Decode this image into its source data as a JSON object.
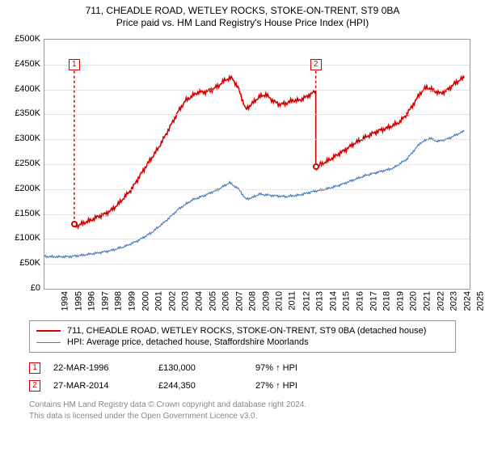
{
  "title_line1": "711, CHEADLE ROAD, WETLEY ROCKS, STOKE-ON-TRENT, ST9 0BA",
  "title_line2": "Price paid vs. HM Land Registry's House Price Index (HPI)",
  "chart": {
    "type": "line",
    "xlim": [
      1994,
      2025.7
    ],
    "ylim": [
      0,
      500000
    ],
    "ytick_step": 50000,
    "yticks": [
      "£0",
      "£50K",
      "£100K",
      "£150K",
      "£200K",
      "£250K",
      "£300K",
      "£350K",
      "£400K",
      "£450K",
      "£500K"
    ],
    "xticks": [
      1994,
      1995,
      1996,
      1997,
      1998,
      1999,
      2000,
      2001,
      2002,
      2003,
      2004,
      2005,
      2006,
      2007,
      2008,
      2009,
      2010,
      2011,
      2012,
      2013,
      2014,
      2015,
      2016,
      2017,
      2018,
      2019,
      2020,
      2021,
      2022,
      2023,
      2024,
      2025
    ],
    "grid_color": "#cccccc",
    "border_color": "#999999",
    "background_color": "#ffffff",
    "label_fontsize": 11,
    "series": [
      {
        "name": "property",
        "color": "#d40000",
        "width": 1.6,
        "segments": [
          [
            [
              1996.22,
              130000
            ],
            [
              1996.5,
              127000
            ],
            [
              1997,
              133000
            ],
            [
              1997.5,
              138000
            ],
            [
              1998,
              145000
            ],
            [
              1998.5,
              150000
            ],
            [
              1999,
              158000
            ],
            [
              1999.5,
              170000
            ],
            [
              2000,
              185000
            ],
            [
              2000.5,
              200000
            ],
            [
              2001,
              222000
            ],
            [
              2001.5,
              243000
            ],
            [
              2002,
              263000
            ],
            [
              2002.5,
              283000
            ],
            [
              2003,
              307000
            ],
            [
              2003.5,
              332000
            ],
            [
              2004,
              357000
            ],
            [
              2004.5,
              377000
            ],
            [
              2005,
              387000
            ],
            [
              2005.5,
              395000
            ],
            [
              2006,
              395000
            ],
            [
              2006.5,
              400000
            ],
            [
              2007,
              408000
            ],
            [
              2007.5,
              420000
            ],
            [
              2008,
              423000
            ],
            [
              2008.5,
              400000
            ],
            [
              2009,
              360000
            ],
            [
              2009.5,
              372000
            ],
            [
              2010,
              385000
            ],
            [
              2010.5,
              390000
            ],
            [
              2011,
              378000
            ],
            [
              2011.5,
              370000
            ],
            [
              2012,
              372000
            ],
            [
              2012.5,
              378000
            ],
            [
              2013,
              378000
            ],
            [
              2013.5,
              385000
            ],
            [
              2014,
              393000
            ],
            [
              2014.23,
              398000
            ]
          ],
          [
            [
              2014.23,
              244350
            ],
            [
              2014.5,
              248000
            ],
            [
              2015,
              255000
            ],
            [
              2015.5,
              263000
            ],
            [
              2016,
              272000
            ],
            [
              2016.5,
              280000
            ],
            [
              2017,
              290000
            ],
            [
              2017.5,
              298000
            ],
            [
              2018,
              305000
            ],
            [
              2018.5,
              312000
            ],
            [
              2019,
              318000
            ],
            [
              2019.5,
              322000
            ],
            [
              2020,
              328000
            ],
            [
              2020.5,
              335000
            ],
            [
              2021,
              350000
            ],
            [
              2021.5,
              370000
            ],
            [
              2022,
              392000
            ],
            [
              2022.5,
              405000
            ],
            [
              2023,
              398000
            ],
            [
              2023.5,
              392000
            ],
            [
              2024,
              398000
            ],
            [
              2024.5,
              410000
            ],
            [
              2025,
              420000
            ],
            [
              2025.3,
              423000
            ]
          ]
        ]
      },
      {
        "name": "hpi",
        "color": "#4a7ebb",
        "width": 1.2,
        "segments": [
          [
            [
              1994,
              65000
            ],
            [
              1995,
              64000
            ],
            [
              1996,
              65000
            ],
            [
              1997,
              68000
            ],
            [
              1998,
              72000
            ],
            [
              1999,
              77000
            ],
            [
              2000,
              85000
            ],
            [
              2001,
              97000
            ],
            [
              2002,
              113000
            ],
            [
              2003,
              135000
            ],
            [
              2004,
              160000
            ],
            [
              2005,
              178000
            ],
            [
              2006,
              188000
            ],
            [
              2007,
              200000
            ],
            [
              2007.8,
              213000
            ],
            [
              2008.5,
              200000
            ],
            [
              2009,
              180000
            ],
            [
              2009.5,
              183000
            ],
            [
              2010,
              190000
            ],
            [
              2011,
              187000
            ],
            [
              2012,
              185000
            ],
            [
              2013,
              188000
            ],
            [
              2014,
              195000
            ],
            [
              2015,
              200000
            ],
            [
              2016,
              208000
            ],
            [
              2017,
              218000
            ],
            [
              2018,
              228000
            ],
            [
              2019,
              235000
            ],
            [
              2020,
              242000
            ],
            [
              2021,
              260000
            ],
            [
              2022,
              292000
            ],
            [
              2022.7,
              302000
            ],
            [
              2023.3,
              296000
            ],
            [
              2024,
              300000
            ],
            [
              2025,
              313000
            ],
            [
              2025.3,
              316000
            ]
          ]
        ]
      }
    ],
    "sale_markers": [
      {
        "n": "1",
        "x": 1996.22,
        "y_line": 130000,
        "label_y": 450000,
        "color": "#d40000"
      },
      {
        "n": "2",
        "x": 2014.23,
        "y_line": 244350,
        "label_y": 450000,
        "color": "#d40000"
      }
    ],
    "sale_points": [
      {
        "x": 1996.22,
        "y": 130000,
        "color": "#d40000"
      },
      {
        "x": 2014.23,
        "y": 244350,
        "color": "#d40000"
      }
    ]
  },
  "legend": {
    "items": [
      {
        "color": "#d40000",
        "width": 2,
        "label": "711, CHEADLE ROAD, WETLEY ROCKS, STOKE-ON-TRENT, ST9 0BA (detached house)"
      },
      {
        "color": "#4a7ebb",
        "width": 1.5,
        "label": "HPI: Average price, detached house, Staffordshire Moorlands"
      }
    ]
  },
  "sales": [
    {
      "n": "1",
      "color": "#d40000",
      "date": "22-MAR-1996",
      "price": "£130,000",
      "pct": "97% ↑ HPI"
    },
    {
      "n": "2",
      "color": "#d40000",
      "date": "27-MAR-2014",
      "price": "£244,350",
      "pct": "27% ↑ HPI"
    }
  ],
  "footer": {
    "line1": "Contains HM Land Registry data © Crown copyright and database right 2024.",
    "line2": "This data is licensed under the Open Government Licence v3.0."
  }
}
